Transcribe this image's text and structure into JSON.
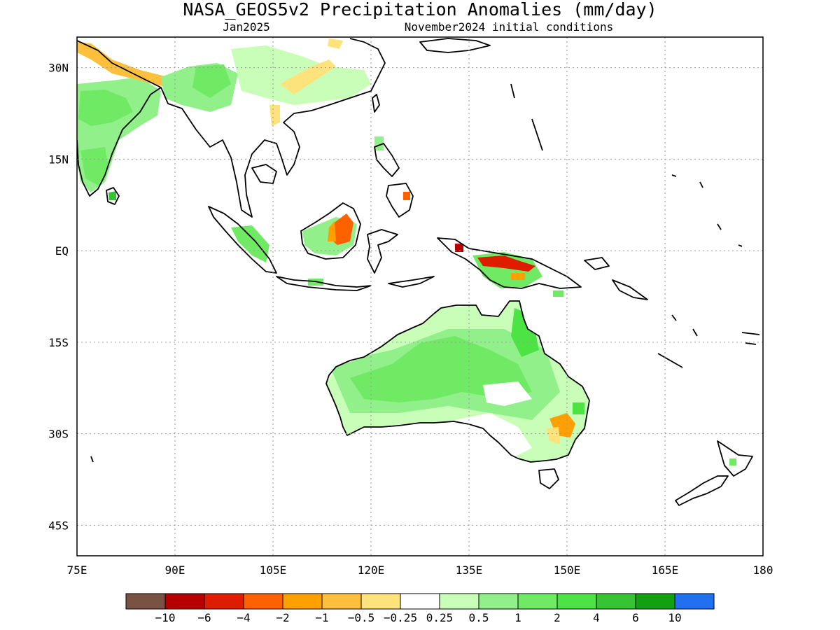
{
  "title": "NASA_GEOS5v2 Precipitation Anomalies (mm/day)",
  "subtitle_left": "Jan2025",
  "subtitle_right": "November2024 initial conditions",
  "map": {
    "lon_range": [
      75,
      180
    ],
    "lat_range": [
      -50,
      35
    ],
    "lon_ticks": [
      "75E",
      "90E",
      "105E",
      "120E",
      "135E",
      "150E",
      "165E",
      "180"
    ],
    "lon_tick_values": [
      75,
      90,
      105,
      120,
      135,
      150,
      165,
      180
    ],
    "lat_ticks": [
      "30N",
      "15N",
      "EQ",
      "15S",
      "30S",
      "45S"
    ],
    "lat_tick_values": [
      30,
      15,
      0,
      -15,
      -30,
      -45
    ],
    "grid": true
  },
  "colorbar": {
    "labels": [
      "-10",
      "-6",
      "-4",
      "-2",
      "-1",
      "-0.5",
      "-0.25",
      "0.25",
      "0.5",
      "1",
      "2",
      "4",
      "6",
      "10"
    ],
    "colors": [
      "#7a5244",
      "#b60000",
      "#dd1c00",
      "#fe6100",
      "#fea000",
      "#fec03c",
      "#fee37c",
      "#ffffff",
      "#c8feb8",
      "#91f08a",
      "#70ea65",
      "#4ce444",
      "#34c434",
      "#11a011",
      "#2070f0"
    ]
  },
  "colors": {
    "dry_strong": "#dd1c00",
    "dry": "#fea000",
    "dry_light": "#fee37c",
    "wet_light": "#c8feb8",
    "wet": "#70ea65",
    "wet_strong": "#34c434"
  }
}
